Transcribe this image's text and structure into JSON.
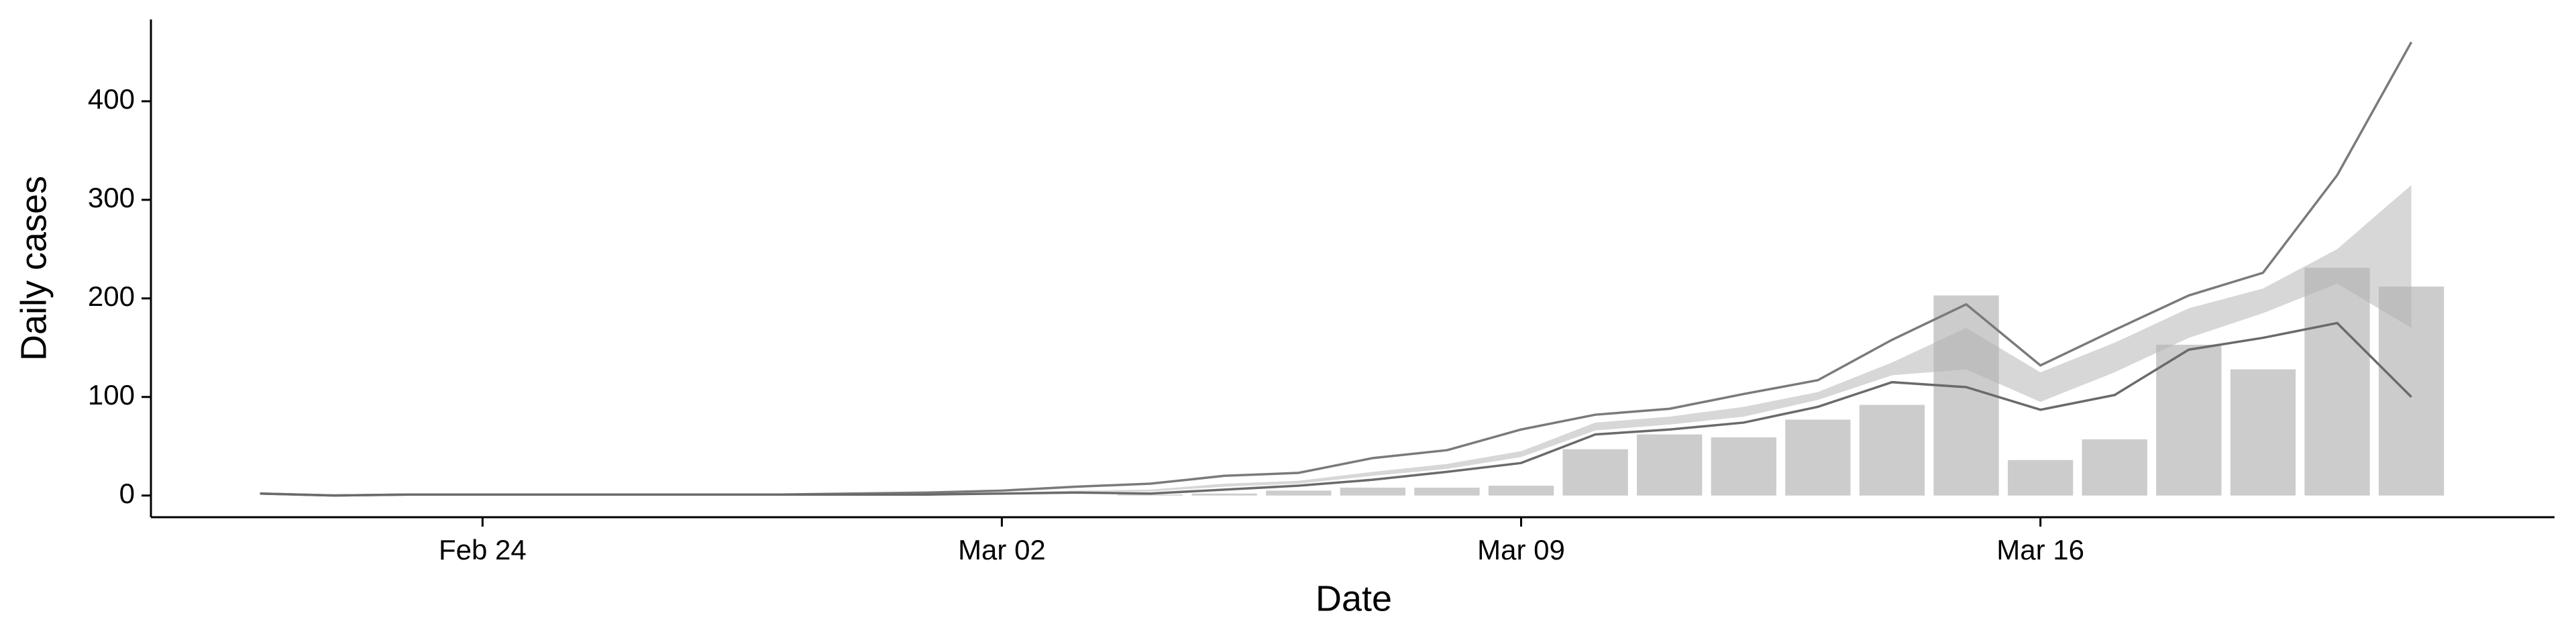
{
  "chart_data": {
    "type": "bar_line",
    "x_label": "Date",
    "y_label": "Daily cases",
    "x": [
      "Feb 21",
      "Feb 22",
      "Feb 23",
      "Feb 24",
      "Feb 25",
      "Feb 26",
      "Feb 27",
      "Feb 28",
      "Feb 29",
      "Mar 01",
      "Mar 02",
      "Mar 03",
      "Mar 04",
      "Mar 05",
      "Mar 06",
      "Mar 07",
      "Mar 08",
      "Mar 09",
      "Mar 10",
      "Mar 11",
      "Mar 12",
      "Mar 13",
      "Mar 14",
      "Mar 15",
      "Mar 16",
      "Mar 17",
      "Mar 18",
      "Mar 19",
      "Mar 20",
      "Mar 21"
    ],
    "xticks": [
      "Feb 24",
      "Mar 02",
      "Mar 09",
      "Mar 16"
    ],
    "bars": {
      "color": "#cccccc",
      "values": [
        0,
        0,
        0,
        0,
        0,
        0,
        0,
        0,
        0,
        0,
        0,
        0,
        1,
        2,
        5,
        8,
        8,
        10,
        47,
        62,
        59,
        77,
        92,
        203,
        36,
        57,
        153,
        128,
        231,
        212
      ]
    },
    "band": {
      "color": "#b0b0b0",
      "upper": [
        1,
        0,
        1,
        1,
        1,
        1,
        1,
        1,
        1,
        2,
        3,
        5,
        6,
        12,
        15,
        24,
        32,
        45,
        74,
        80,
        90,
        105,
        135,
        170,
        125,
        155,
        190,
        210,
        250,
        315
      ],
      "lower": [
        1,
        0,
        1,
        1,
        1,
        1,
        1,
        1,
        1,
        2,
        2,
        4,
        4,
        9,
        12,
        20,
        27,
        39,
        66,
        72,
        80,
        97,
        122,
        128,
        95,
        125,
        160,
        185,
        215,
        170
      ]
    },
    "series": [
      {
        "color": "#7a7a7a",
        "values": [
          2,
          0,
          1,
          1,
          1,
          1,
          1,
          1,
          2,
          3,
          5,
          9,
          12,
          20,
          23,
          38,
          46,
          67,
          82,
          88,
          103,
          117,
          158,
          194,
          132,
          168,
          203,
          226,
          325,
          460
        ]
      },
      {
        "color": "#6a6a6a",
        "values": [
          2,
          0,
          1,
          1,
          1,
          1,
          1,
          1,
          1,
          1,
          2,
          3,
          2,
          6,
          10,
          16,
          24,
          33,
          62,
          67,
          74,
          90,
          115,
          110,
          87,
          102,
          148,
          160,
          175,
          100
        ]
      }
    ],
    "ylim": [
      -22,
      483
    ],
    "yticks": [
      0,
      100,
      200,
      300,
      400
    ],
    "grid": false
  }
}
